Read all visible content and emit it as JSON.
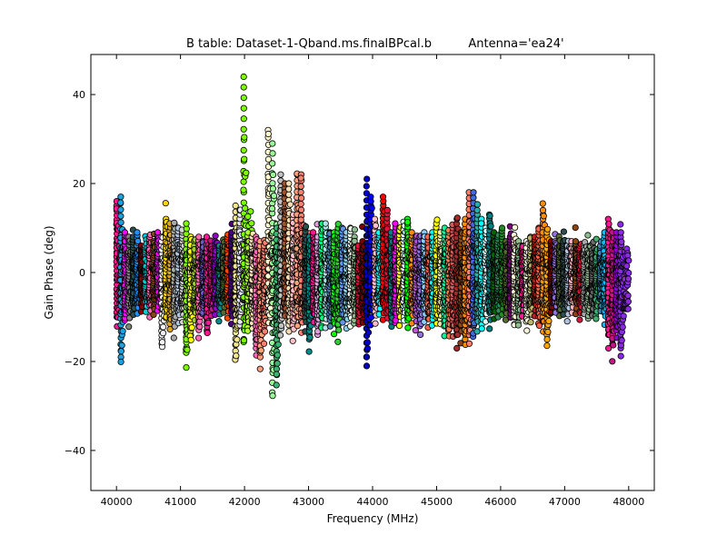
{
  "chart_data": {
    "type": "scatter",
    "title": "B table: Dataset-1-Qband.ms.finalBPcal.b",
    "subtitle": "Antenna='ea24'",
    "xlabel": "Frequency (MHz)",
    "ylabel": "Gain Phase (deg)",
    "xlim": [
      39600,
      48400
    ],
    "ylim": [
      -49,
      49
    ],
    "xticks": [
      40000,
      41000,
      42000,
      43000,
      44000,
      45000,
      46000,
      47000,
      48000
    ],
    "yticks": [
      -40,
      -20,
      0,
      20,
      40
    ],
    "xtick_labels": [
      "40000",
      "41000",
      "42000",
      "43000",
      "44000",
      "45000",
      "46000",
      "47000",
      "48000"
    ],
    "ytick_labels": [
      "−40",
      "−20",
      "0",
      "20",
      "40"
    ],
    "grid": false,
    "legend": "none",
    "marker": "circle",
    "series_note_visible": "",
    "spectral_windows": [
      {
        "start": 40000,
        "end": 40128,
        "color": "#ff1493",
        "ymin": -10,
        "ymax": 16
      },
      {
        "start": 40064,
        "end": 40192,
        "color": "#1ea0e0",
        "ymin": -19,
        "ymax": 17
      },
      {
        "start": 40128,
        "end": 40256,
        "color": "#ff00ff",
        "ymin": -8,
        "ymax": 9
      },
      {
        "start": 40192,
        "end": 40320,
        "color": "#808080",
        "ymin": -9,
        "ymax": 8
      },
      {
        "start": 40256,
        "end": 40384,
        "color": "#2f4f4f",
        "ymin": -7,
        "ymax": 8
      },
      {
        "start": 40320,
        "end": 40448,
        "color": "#1e90ff",
        "ymin": -6,
        "ymax": 9
      },
      {
        "start": 40384,
        "end": 40512,
        "color": "#8b0000",
        "ymin": -5,
        "ymax": 6
      },
      {
        "start": 40448,
        "end": 40576,
        "color": "#00ced1",
        "ymin": -6,
        "ymax": 6
      },
      {
        "start": 40512,
        "end": 40640,
        "color": "#ff69b4",
        "ymin": -7,
        "ymax": 8
      },
      {
        "start": 40576,
        "end": 40704,
        "color": "#8b4513",
        "ymin": -6,
        "ymax": 7
      },
      {
        "start": 40640,
        "end": 40768,
        "color": "#ff00ff",
        "ymin": -5,
        "ymax": 9
      },
      {
        "start": 40704,
        "end": 40832,
        "color": "#f5f5f5",
        "ymin": -16,
        "ymax": 8
      },
      {
        "start": 40768,
        "end": 40896,
        "color": "#ffd700",
        "ymin": -8,
        "ymax": 12
      },
      {
        "start": 40832,
        "end": 40960,
        "color": "#daa520",
        "ymin": -10,
        "ymax": 11
      },
      {
        "start": 40896,
        "end": 41024,
        "color": "#a9a9a9",
        "ymin": -11,
        "ymax": 11
      },
      {
        "start": 40960,
        "end": 41088,
        "color": "#b0c4de",
        "ymin": -9,
        "ymax": 10
      },
      {
        "start": 41024,
        "end": 41152,
        "color": "#d3d3d3",
        "ymin": -8,
        "ymax": 9
      },
      {
        "start": 41088,
        "end": 41216,
        "color": "#7cfc00",
        "ymin": -18,
        "ymax": 11
      },
      {
        "start": 41152,
        "end": 41280,
        "color": "#ffff00",
        "ymin": -14,
        "ymax": 8
      },
      {
        "start": 41216,
        "end": 41344,
        "color": "#9acd32",
        "ymin": -8,
        "ymax": 6
      },
      {
        "start": 41280,
        "end": 41408,
        "color": "#ff69b4",
        "ymin": -12,
        "ymax": 8
      },
      {
        "start": 41344,
        "end": 41472,
        "color": "#6a5acd",
        "ymin": -6,
        "ymax": 7
      },
      {
        "start": 41408,
        "end": 41536,
        "color": "#ff1493",
        "ymin": -13,
        "ymax": 8
      },
      {
        "start": 41472,
        "end": 41600,
        "color": "#c71585",
        "ymin": -7,
        "ymax": 7
      },
      {
        "start": 41536,
        "end": 41664,
        "color": "#9400d3",
        "ymin": -6,
        "ymax": 7
      },
      {
        "start": 41600,
        "end": 41728,
        "color": "#008b8b",
        "ymin": -7,
        "ymax": 6
      },
      {
        "start": 41664,
        "end": 41792,
        "color": "#556b2f",
        "ymin": -6,
        "ymax": 6
      },
      {
        "start": 41728,
        "end": 41856,
        "color": "#ff4500",
        "ymin": -7,
        "ymax": 8
      },
      {
        "start": 41792,
        "end": 41920,
        "color": "#4b0082",
        "ymin": -8,
        "ymax": 9
      },
      {
        "start": 41856,
        "end": 41984,
        "color": "#f0e68c",
        "ymin": -19,
        "ymax": 15
      },
      {
        "start": 41920,
        "end": 42048,
        "color": "#e6e6fa",
        "ymin": -10,
        "ymax": 14
      },
      {
        "start": 41984,
        "end": 42112,
        "color": "#7cfc00",
        "ymin": -15,
        "ymax": 44
      },
      {
        "start": 42048,
        "end": 42176,
        "color": "#adff2f",
        "ymin": -10,
        "ymax": 9
      },
      {
        "start": 42112,
        "end": 42240,
        "color": "#ffe4b5",
        "ymin": -11,
        "ymax": 8
      },
      {
        "start": 42176,
        "end": 42304,
        "color": "#ff69b4",
        "ymin": -17,
        "ymax": 8
      },
      {
        "start": 42240,
        "end": 42368,
        "color": "#ffa07a",
        "ymin": -19,
        "ymax": 7
      },
      {
        "start": 42304,
        "end": 42432,
        "color": "#fa8072",
        "ymin": -12,
        "ymax": 6
      },
      {
        "start": 42368,
        "end": 42496,
        "color": "#fffacd",
        "ymin": -9,
        "ymax": 32
      },
      {
        "start": 42432,
        "end": 42560,
        "color": "#98fb98",
        "ymin": -27,
        "ymax": 29
      },
      {
        "start": 42496,
        "end": 42624,
        "color": "#3cb371",
        "ymin": -23,
        "ymax": 10
      },
      {
        "start": 42560,
        "end": 42688,
        "color": "#c0c0c0",
        "ymin": -12,
        "ymax": 22
      },
      {
        "start": 42624,
        "end": 42752,
        "color": "#a0522d",
        "ymin": -8,
        "ymax": 20
      },
      {
        "start": 42688,
        "end": 42816,
        "color": "#f5deb3",
        "ymin": -11,
        "ymax": 20
      },
      {
        "start": 42752,
        "end": 42880,
        "color": "#ffc0cb",
        "ymin": -12,
        "ymax": 13
      },
      {
        "start": 42816,
        "end": 42944,
        "color": "#ffa07a",
        "ymin": -10,
        "ymax": 22
      },
      {
        "start": 42880,
        "end": 43008,
        "color": "#fa8072",
        "ymin": -11,
        "ymax": 22
      },
      {
        "start": 42944,
        "end": 43072,
        "color": "#2f4f4f",
        "ymin": -10,
        "ymax": 10
      },
      {
        "start": 43008,
        "end": 43136,
        "color": "#008b8b",
        "ymin": -14,
        "ymax": 8
      },
      {
        "start": 43072,
        "end": 43200,
        "color": "#ff1493",
        "ymin": -9,
        "ymax": 9
      },
      {
        "start": 43136,
        "end": 43264,
        "color": "#dda0dd",
        "ymin": -12,
        "ymax": 8
      },
      {
        "start": 43200,
        "end": 43328,
        "color": "#00ff7f",
        "ymin": -10,
        "ymax": 11
      },
      {
        "start": 43264,
        "end": 43392,
        "color": "#b0e0e6",
        "ymin": -9,
        "ymax": 11
      },
      {
        "start": 43328,
        "end": 43456,
        "color": "#4682b4",
        "ymin": -10,
        "ymax": 9
      },
      {
        "start": 43392,
        "end": 43520,
        "color": "#00ff00",
        "ymin": -11,
        "ymax": 9
      },
      {
        "start": 43456,
        "end": 43584,
        "color": "#32cd32",
        "ymin": -12,
        "ymax": 10
      },
      {
        "start": 43520,
        "end": 43648,
        "color": "#6495ed",
        "ymin": -9,
        "ymax": 10
      },
      {
        "start": 43584,
        "end": 43712,
        "color": "#87ceeb",
        "ymin": -10,
        "ymax": 9
      },
      {
        "start": 43648,
        "end": 43776,
        "color": "#f0fff0",
        "ymin": -9,
        "ymax": 10
      },
      {
        "start": 43712,
        "end": 43840,
        "color": "#8fbc8f",
        "ymin": -8,
        "ymax": 8
      },
      {
        "start": 43776,
        "end": 43904,
        "color": "#dc143c",
        "ymin": -10,
        "ymax": 6
      },
      {
        "start": 43840,
        "end": 43968,
        "color": "#800000",
        "ymin": -9,
        "ymax": 7
      },
      {
        "start": 43904,
        "end": 44032,
        "color": "#0000cd",
        "ymin": -19,
        "ymax": 21
      },
      {
        "start": 43968,
        "end": 44096,
        "color": "#0000ff",
        "ymin": -8,
        "ymax": 17
      },
      {
        "start": 44032,
        "end": 44160,
        "color": "#ffc0cb",
        "ymin": -9,
        "ymax": 12
      },
      {
        "start": 44096,
        "end": 44224,
        "color": "#00ffff",
        "ymin": -6,
        "ymax": 9
      },
      {
        "start": 44160,
        "end": 44288,
        "color": "#ff0000",
        "ymin": -7,
        "ymax": 17
      },
      {
        "start": 44224,
        "end": 44352,
        "color": "#dc143c",
        "ymin": -8,
        "ymax": 14
      },
      {
        "start": 44288,
        "end": 44416,
        "color": "#008080",
        "ymin": -10,
        "ymax": 9
      },
      {
        "start": 44352,
        "end": 44480,
        "color": "#ff00ff",
        "ymin": -9,
        "ymax": 11
      },
      {
        "start": 44416,
        "end": 44544,
        "color": "#ffff00",
        "ymin": -9,
        "ymax": 10
      },
      {
        "start": 44480,
        "end": 44608,
        "color": "#e0ffff",
        "ymin": -9,
        "ymax": 10
      },
      {
        "start": 44544,
        "end": 44672,
        "color": "#00ff00",
        "ymin": -10,
        "ymax": 12
      },
      {
        "start": 44608,
        "end": 44736,
        "color": "#ff8c00",
        "ymin": -8,
        "ymax": 9
      },
      {
        "start": 44672,
        "end": 44800,
        "color": "#ba55d3",
        "ymin": -9,
        "ymax": 8
      },
      {
        "start": 44736,
        "end": 44864,
        "color": "#9370db",
        "ymin": -12,
        "ymax": 8
      },
      {
        "start": 44800,
        "end": 44928,
        "color": "#87cefa",
        "ymin": -8,
        "ymax": 9
      },
      {
        "start": 44864,
        "end": 44992,
        "color": "#ff6347",
        "ymin": -9,
        "ymax": 8
      },
      {
        "start": 44928,
        "end": 45056,
        "color": "#00ffff",
        "ymin": -9,
        "ymax": 9
      },
      {
        "start": 44992,
        "end": 45120,
        "color": "#ffff00",
        "ymin": -10,
        "ymax": 11
      },
      {
        "start": 45056,
        "end": 45184,
        "color": "#eee8aa",
        "ymin": -9,
        "ymax": 9
      },
      {
        "start": 45120,
        "end": 45248,
        "color": "#00fa9a",
        "ymin": -11,
        "ymax": 10
      },
      {
        "start": 45184,
        "end": 45312,
        "color": "#ff7f50",
        "ymin": -13,
        "ymax": 9
      },
      {
        "start": 45248,
        "end": 45376,
        "color": "#cd5c5c",
        "ymin": -12,
        "ymax": 10
      },
      {
        "start": 45312,
        "end": 45440,
        "color": "#a52a2a",
        "ymin": -14,
        "ymax": 12
      },
      {
        "start": 45376,
        "end": 45504,
        "color": "#8b4513",
        "ymin": -12,
        "ymax": 9
      },
      {
        "start": 45440,
        "end": 45568,
        "color": "#ff8c00",
        "ymin": -15,
        "ymax": 12
      },
      {
        "start": 45504,
        "end": 45632,
        "color": "#fa8072",
        "ymin": -14,
        "ymax": 18
      },
      {
        "start": 45568,
        "end": 45696,
        "color": "#4169e1",
        "ymin": -12,
        "ymax": 18
      },
      {
        "start": 45632,
        "end": 45760,
        "color": "#20b2aa",
        "ymin": -10,
        "ymax": 14
      },
      {
        "start": 45696,
        "end": 45824,
        "color": "#00ffff",
        "ymin": -11,
        "ymax": 12
      },
      {
        "start": 45760,
        "end": 45888,
        "color": "#e0ffff",
        "ymin": -8,
        "ymax": 10
      },
      {
        "start": 45824,
        "end": 45952,
        "color": "#008080",
        "ymin": -9,
        "ymax": 13
      },
      {
        "start": 45888,
        "end": 46016,
        "color": "#006400",
        "ymin": -8,
        "ymax": 9
      },
      {
        "start": 45952,
        "end": 46080,
        "color": "#2e8b57",
        "ymin": -7,
        "ymax": 8
      },
      {
        "start": 46016,
        "end": 46144,
        "color": "#228b22",
        "ymin": -6,
        "ymax": 10
      },
      {
        "start": 46080,
        "end": 46208,
        "color": "#556b2f",
        "ymin": -7,
        "ymax": 7
      },
      {
        "start": 46144,
        "end": 46272,
        "color": "#800080",
        "ymin": -8,
        "ymax": 8
      },
      {
        "start": 46208,
        "end": 46336,
        "color": "#fff8dc",
        "ymin": -10,
        "ymax": 8
      },
      {
        "start": 46272,
        "end": 46400,
        "color": "#8fbc8f",
        "ymin": -9,
        "ymax": 7
      },
      {
        "start": 46336,
        "end": 46464,
        "color": "#ff1493",
        "ymin": -6,
        "ymax": 6
      },
      {
        "start": 46400,
        "end": 46528,
        "color": "#f5f5dc",
        "ymin": -11,
        "ymax": 7
      },
      {
        "start": 46464,
        "end": 46592,
        "color": "#bdb76b",
        "ymin": -8,
        "ymax": 8
      },
      {
        "start": 46528,
        "end": 46656,
        "color": "#b22222",
        "ymin": -6,
        "ymax": 8
      },
      {
        "start": 46592,
        "end": 46720,
        "color": "#ff6347",
        "ymin": -10,
        "ymax": 10
      },
      {
        "start": 46656,
        "end": 46784,
        "color": "#ff8c00",
        "ymin": -11,
        "ymax": 14
      },
      {
        "start": 46720,
        "end": 46848,
        "color": "#ffa500",
        "ymin": -14,
        "ymax": 9
      },
      {
        "start": 46784,
        "end": 46912,
        "color": "#800000",
        "ymin": -6,
        "ymax": 7
      },
      {
        "start": 46848,
        "end": 46976,
        "color": "#9370db",
        "ymin": -7,
        "ymax": 7
      },
      {
        "start": 46912,
        "end": 47040,
        "color": "#556b2f",
        "ymin": -7,
        "ymax": 6
      },
      {
        "start": 46976,
        "end": 47104,
        "color": "#2f4f4f",
        "ymin": -6,
        "ymax": 7
      },
      {
        "start": 47040,
        "end": 47168,
        "color": "#b0c4de",
        "ymin": -7,
        "ymax": 6
      },
      {
        "start": 47104,
        "end": 47232,
        "color": "#ffb6c1",
        "ymin": -6,
        "ymax": 7
      },
      {
        "start": 47168,
        "end": 47296,
        "color": "#8b4513",
        "ymin": -6,
        "ymax": 7
      },
      {
        "start": 47232,
        "end": 47360,
        "color": "#dc143c",
        "ymin": -7,
        "ymax": 6
      },
      {
        "start": 47296,
        "end": 47424,
        "color": "#a9a9a9",
        "ymin": -7,
        "ymax": 6
      },
      {
        "start": 47360,
        "end": 47488,
        "color": "#8fbc8f",
        "ymin": -8,
        "ymax": 5
      },
      {
        "start": 47424,
        "end": 47552,
        "color": "#696969",
        "ymin": -7,
        "ymax": 5
      },
      {
        "start": 47488,
        "end": 47616,
        "color": "#3cb371",
        "ymin": -7,
        "ymax": 5
      },
      {
        "start": 47552,
        "end": 47680,
        "color": "#4682b4",
        "ymin": -6,
        "ymax": 6
      },
      {
        "start": 47616,
        "end": 47744,
        "color": "#00bfff",
        "ymin": -9,
        "ymax": 9
      },
      {
        "start": 47680,
        "end": 47808,
        "color": "#ff1493",
        "ymin": -14,
        "ymax": 12
      },
      {
        "start": 47744,
        "end": 47872,
        "color": "#c71585",
        "ymin": -16,
        "ymax": 9
      },
      {
        "start": 47808,
        "end": 47936,
        "color": "#9400d3",
        "ymin": -13,
        "ymax": 9
      },
      {
        "start": 47872,
        "end": 48000,
        "color": "#8a2be2",
        "ymin": -17,
        "ymax": 9
      }
    ]
  }
}
